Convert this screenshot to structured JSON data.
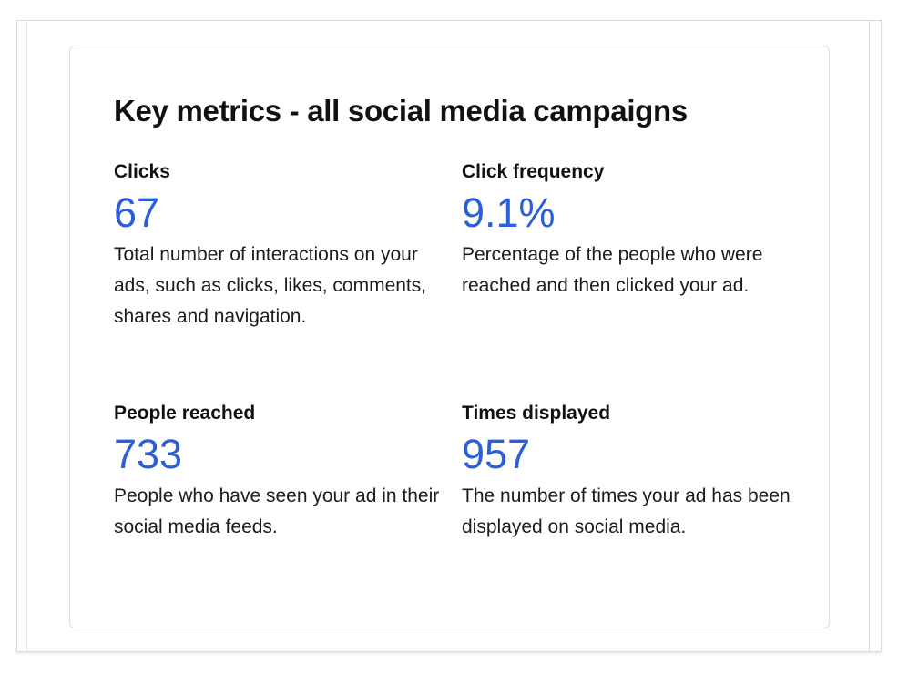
{
  "card": {
    "title": "Key metrics - all social media campaigns"
  },
  "metrics": [
    {
      "label": "Clicks",
      "value": "67",
      "description": "Total number of interactions on your ads, such as clicks, likes, comments, shares and navigation."
    },
    {
      "label": "Click frequency",
      "value": "9.1%",
      "description": "Percentage of the people who were reached and then clicked your ad."
    },
    {
      "label": "People reached",
      "value": "733",
      "description": "People who have seen your ad in their social media feeds."
    },
    {
      "label": "Times displayed",
      "value": "957",
      "description": "The number of times your ad has been displayed on social media."
    }
  ],
  "colors": {
    "accent": "#2b5fd9",
    "text": "#111111",
    "border": "#d9dde4"
  }
}
